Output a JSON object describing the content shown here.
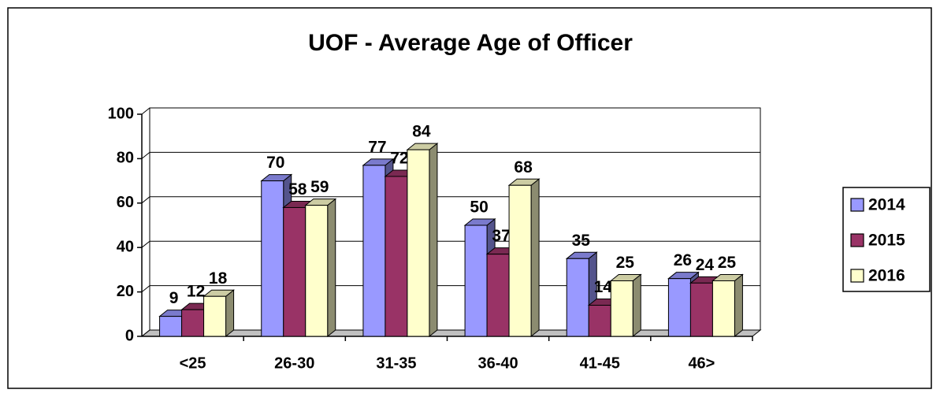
{
  "chart_data": {
    "type": "bar3d",
    "title": "UOF - Average Age of Officer",
    "categories": [
      "<25",
      "26-30",
      "31-35",
      "36-40",
      "41-45",
      "46>"
    ],
    "series": [
      {
        "name": "2014",
        "color": "#9999ff",
        "values": [
          9,
          70,
          77,
          50,
          35,
          26
        ]
      },
      {
        "name": "2015",
        "color": "#993366",
        "values": [
          12,
          58,
          72,
          37,
          14,
          24
        ]
      },
      {
        "name": "2016",
        "color": "#ffffcc",
        "values": [
          18,
          59,
          84,
          68,
          25,
          25
        ]
      }
    ],
    "ylim": [
      0,
      100
    ],
    "yticks": [
      0,
      20,
      40,
      60,
      80,
      100
    ],
    "grid": true,
    "legend": "right"
  }
}
